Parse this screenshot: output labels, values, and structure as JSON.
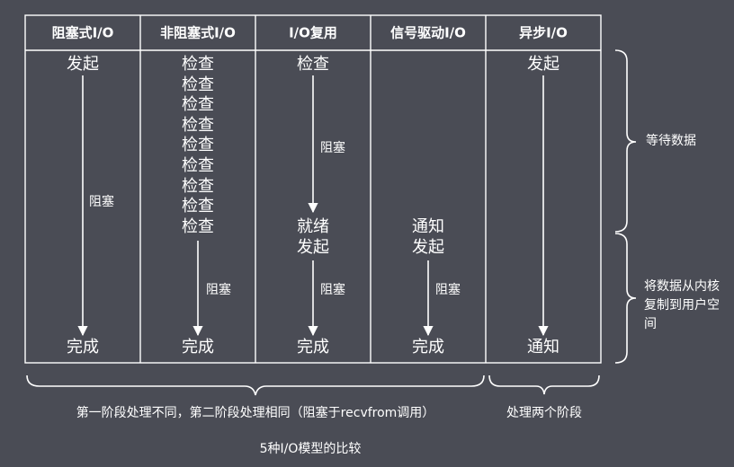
{
  "headers": [
    "阻塞式I/O",
    "非阻塞式I/O",
    "I/O复用",
    "信号驱动I/O",
    "异步I/O"
  ],
  "columns": [
    {
      "start": [
        "发起"
      ],
      "block_label": "阻塞",
      "end": "完成"
    },
    {
      "start": [
        "检查",
        "检查",
        "检查",
        "检查",
        "检查",
        "检查",
        "检查",
        "检查",
        "检查"
      ],
      "block_label": "阻塞",
      "end": "完成"
    },
    {
      "start": [
        "检查"
      ],
      "mid_block_label": "阻塞",
      "mid": [
        "就绪",
        "发起"
      ],
      "block_label": "阻塞",
      "end": "完成"
    },
    {
      "start": [],
      "mid": [
        "通知",
        "发起"
      ],
      "block_label": "阻塞",
      "end": "完成"
    },
    {
      "start": [
        "发起"
      ],
      "end": "通知"
    }
  ],
  "side_labels": {
    "wait": "等待数据",
    "copy": "将数据从内核复制到用户空间"
  },
  "footer": {
    "left": "第一阶段处理不同，第二阶段处理相同（阻塞于recvfrom调用）",
    "right": "处理两个阶段"
  },
  "caption": "5种I/O模型的比较"
}
